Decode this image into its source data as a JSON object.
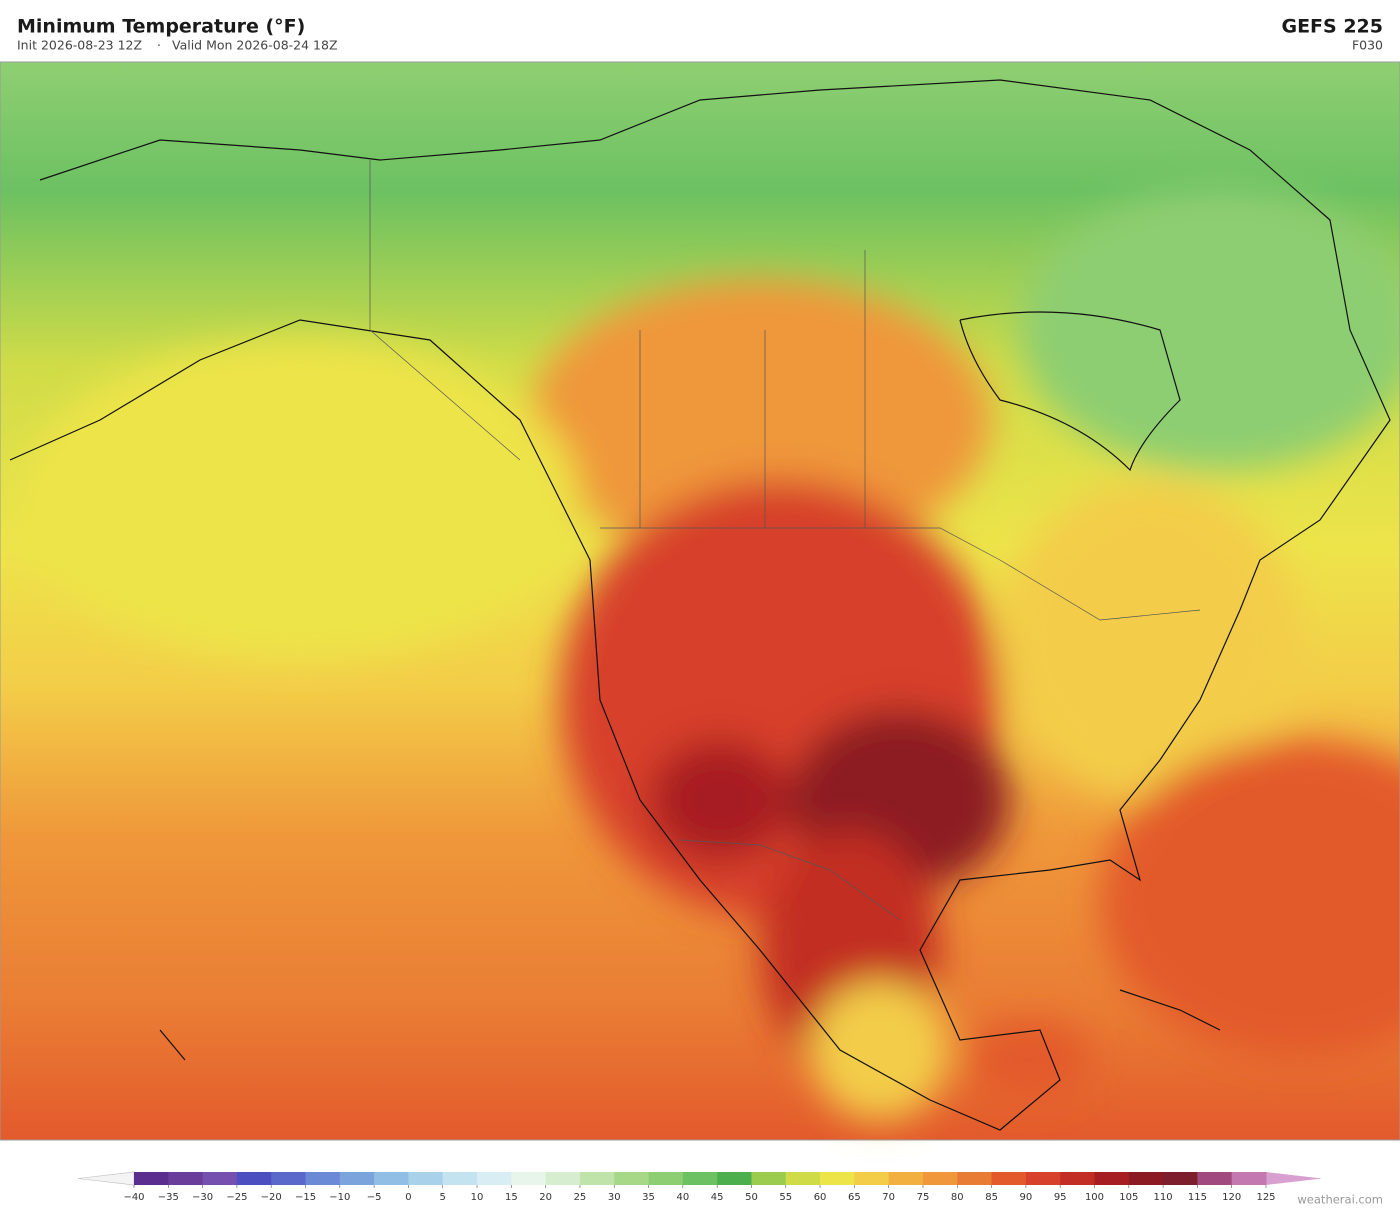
{
  "header": {
    "title": "Minimum Temperature  (°F)",
    "init": "Init 2026-08-23 12Z",
    "separator": "·",
    "valid": "Valid Mon 2026-08-24 18Z",
    "model": "GEFS  225",
    "forecast_hour": "F030"
  },
  "colorbar": {
    "range": [
      -40,
      125
    ],
    "ticks": [
      {
        "value": -40,
        "label": "−40"
      },
      {
        "value": -35,
        "label": "−35"
      },
      {
        "value": -30,
        "label": "−30"
      },
      {
        "value": -25,
        "label": "−25"
      },
      {
        "value": -20,
        "label": "−20"
      },
      {
        "value": -15,
        "label": "−15"
      },
      {
        "value": -10,
        "label": "−10"
      },
      {
        "value": -5,
        "label": "−5"
      },
      0,
      5,
      10,
      15,
      20,
      25,
      30,
      35,
      40,
      45,
      50,
      55,
      60,
      65,
      70,
      75,
      80,
      85,
      90,
      95,
      100,
      105,
      110,
      115,
      120,
      125
    ],
    "colors": [
      "#5b2d8f",
      "#6a3d9a",
      "#7550ae",
      "#4b4fc0",
      "#5a68cc",
      "#6b8ad6",
      "#7ba4dc",
      "#90bee4",
      "#a9d2ea",
      "#c3e3f0",
      "#d9eef4",
      "#e8f5ea",
      "#d6eecf",
      "#bfe3a8",
      "#a6d888",
      "#8dce72",
      "#6cc162",
      "#4caf4e",
      "#9bcb4f",
      "#cfdc48",
      "#ede44a",
      "#f3cd48",
      "#f2b040",
      "#ef973a",
      "#e97c34",
      "#e35a2c",
      "#d7402a",
      "#c22e24",
      "#a71e22",
      "#8c1a22",
      "#7c1e2c",
      "#a04a80",
      "#c478b0"
    ],
    "under_color": "#f4f4f4",
    "over_color": "#d8a0d0"
  },
  "footer": {
    "credit": "weatherai.com"
  }
}
